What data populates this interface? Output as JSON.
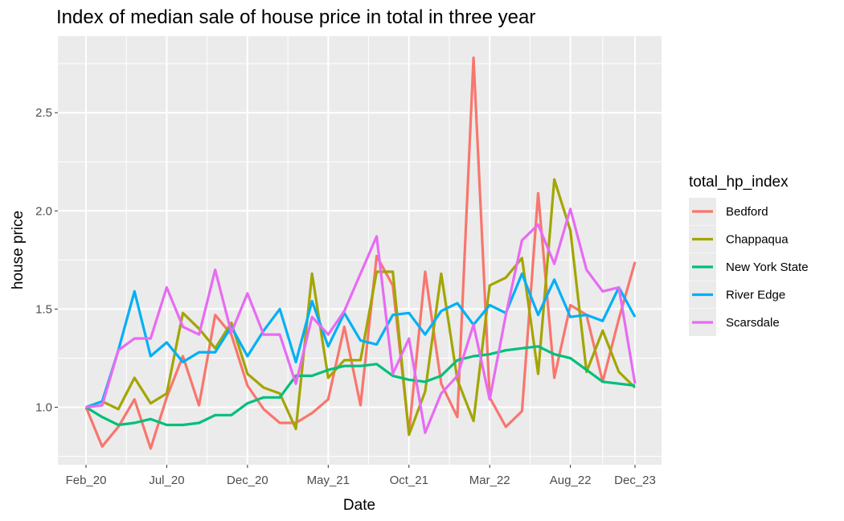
{
  "chart_data": {
    "type": "line",
    "title": "Index of median sale of house price in total in three year",
    "xlabel": "Date",
    "ylabel": "house price",
    "x_tick_labels": [
      "Feb_20",
      "Jul_20",
      "Dec_20",
      "May_21",
      "Oct_21",
      "Mar_22",
      "Aug_22",
      "Dec_23"
    ],
    "y_ticks": [
      1.0,
      1.5,
      2.0,
      2.5
    ],
    "y_tick_labels": [
      "1.0",
      "1.5",
      "2.0",
      "2.5"
    ],
    "ylim": [
      0.72,
      2.92
    ],
    "grid": true,
    "legend_position": "right",
    "legend_title": "total_hp_index",
    "series": [
      {
        "name": "Bedford",
        "color": "#F8766D",
        "values": [
          1.0,
          0.8,
          0.9,
          1.04,
          0.79,
          1.05,
          1.26,
          1.01,
          1.47,
          1.37,
          1.11,
          0.99,
          0.92,
          0.92,
          0.97,
          1.04,
          1.41,
          1.01,
          1.77,
          1.62,
          0.87,
          1.69,
          1.12,
          0.95,
          2.78,
          1.05,
          0.9,
          0.98,
          2.09,
          1.15,
          1.52,
          1.47,
          1.13,
          1.45,
          1.74
        ]
      },
      {
        "name": "Chappaqua",
        "color": "#A3A500",
        "values": [
          1.0,
          1.03,
          0.99,
          1.15,
          1.02,
          1.07,
          1.48,
          1.4,
          1.3,
          1.43,
          1.17,
          1.1,
          1.07,
          0.89,
          1.68,
          1.15,
          1.24,
          1.24,
          1.69,
          1.69,
          0.86,
          1.08,
          1.68,
          1.14,
          0.93,
          1.62,
          1.66,
          1.76,
          1.17,
          2.16,
          1.9,
          1.18,
          1.39,
          1.18,
          1.1
        ]
      },
      {
        "name": "New York State",
        "color": "#00BF7D",
        "values": [
          1.0,
          0.95,
          0.91,
          0.92,
          0.94,
          0.91,
          0.91,
          0.92,
          0.96,
          0.96,
          1.02,
          1.05,
          1.05,
          1.16,
          1.16,
          1.19,
          1.21,
          1.21,
          1.22,
          1.16,
          1.14,
          1.13,
          1.16,
          1.24,
          1.26,
          1.27,
          1.29,
          1.3,
          1.31,
          1.27,
          1.25,
          1.19,
          1.13,
          1.12,
          1.11
        ]
      },
      {
        "name": "River Edge",
        "color": "#00B0F6",
        "values": [
          1.0,
          1.03,
          1.29,
          1.59,
          1.26,
          1.33,
          1.23,
          1.28,
          1.28,
          1.41,
          1.26,
          1.39,
          1.5,
          1.23,
          1.54,
          1.31,
          1.48,
          1.34,
          1.32,
          1.47,
          1.48,
          1.37,
          1.49,
          1.53,
          1.42,
          1.52,
          1.48,
          1.68,
          1.47,
          1.65,
          1.46,
          1.47,
          1.44,
          1.61,
          1.46
        ]
      },
      {
        "name": "Scarsdale",
        "color": "#E76BF3",
        "values": [
          1.0,
          1.01,
          1.29,
          1.35,
          1.35,
          1.61,
          1.41,
          1.37,
          1.7,
          1.38,
          1.58,
          1.37,
          1.37,
          1.12,
          1.46,
          1.37,
          1.49,
          1.68,
          1.87,
          1.17,
          1.35,
          0.87,
          1.07,
          1.16,
          1.42,
          1.04,
          1.47,
          1.85,
          1.93,
          1.73,
          2.01,
          1.7,
          1.59,
          1.61,
          1.12
        ]
      }
    ]
  }
}
